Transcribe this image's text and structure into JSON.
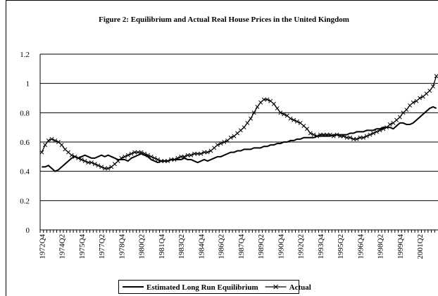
{
  "chart_data": {
    "type": "line",
    "title": "Figure 2: Equilibrium and Actual Real House Prices in the United Kingdom",
    "categories": [
      "1972Q4",
      null,
      null,
      null,
      null,
      null,
      "1974Q2",
      null,
      null,
      null,
      null,
      null,
      "1975Q4",
      null,
      null,
      null,
      null,
      null,
      "1977Q2",
      null,
      null,
      null,
      null,
      null,
      "1978Q4",
      null,
      null,
      null,
      null,
      null,
      "1980Q2",
      null,
      null,
      null,
      null,
      null,
      "1981Q4",
      null,
      null,
      null,
      null,
      null,
      "1983Q2",
      null,
      null,
      null,
      null,
      null,
      "1984Q4",
      null,
      null,
      null,
      null,
      null,
      "1986Q2",
      null,
      null,
      null,
      null,
      null,
      "1987Q4",
      null,
      null,
      null,
      null,
      null,
      "1989Q2",
      null,
      null,
      null,
      null,
      null,
      "1990Q4",
      null,
      null,
      null,
      null,
      null,
      "1992Q2",
      null,
      null,
      null,
      null,
      null,
      "1993Q4",
      null,
      null,
      null,
      null,
      null,
      "1995Q2",
      null,
      null,
      null,
      null,
      null,
      "1996Q4",
      null,
      null,
      null,
      null,
      null,
      "1998Q2",
      null,
      null,
      null,
      null,
      null,
      "1999Q4",
      null,
      null,
      null,
      null,
      null,
      "2001Q2",
      null,
      null,
      null,
      null,
      null
    ],
    "series": [
      {
        "name": "Estimated Long Run Equilibrium",
        "color": "#000000",
        "marker": "none",
        "values": [
          0.43,
          0.43,
          0.44,
          0.42,
          0.4,
          0.41,
          0.43,
          0.45,
          0.47,
          0.49,
          0.5,
          0.49,
          0.5,
          0.51,
          0.5,
          0.49,
          0.49,
          0.5,
          0.51,
          0.5,
          0.51,
          0.5,
          0.49,
          0.48,
          0.48,
          0.48,
          0.47,
          0.49,
          0.5,
          0.51,
          0.52,
          0.51,
          0.5,
          0.48,
          0.47,
          0.46,
          0.47,
          0.47,
          0.47,
          0.48,
          0.48,
          0.48,
          0.48,
          0.49,
          0.48,
          0.48,
          0.47,
          0.46,
          0.47,
          0.48,
          0.47,
          0.48,
          0.49,
          0.5,
          0.5,
          0.51,
          0.52,
          0.53,
          0.53,
          0.54,
          0.54,
          0.55,
          0.55,
          0.55,
          0.56,
          0.56,
          0.56,
          0.57,
          0.57,
          0.58,
          0.58,
          0.59,
          0.59,
          0.6,
          0.6,
          0.61,
          0.61,
          0.62,
          0.62,
          0.63,
          0.63,
          0.63,
          0.63,
          0.64,
          0.64,
          0.64,
          0.64,
          0.64,
          0.65,
          0.65,
          0.65,
          0.65,
          0.65,
          0.66,
          0.66,
          0.67,
          0.67,
          0.67,
          0.68,
          0.68,
          0.68,
          0.69,
          0.69,
          0.7,
          0.7,
          0.7,
          0.69,
          0.71,
          0.73,
          0.73,
          0.72,
          0.72,
          0.73,
          0.75,
          0.77,
          0.79,
          0.81,
          0.83,
          0.84,
          0.83
        ]
      },
      {
        "name": "Actual",
        "color": "#000000",
        "marker": "x",
        "values": [
          0.53,
          0.58,
          0.61,
          0.62,
          0.61,
          0.6,
          0.58,
          0.55,
          0.53,
          0.51,
          0.5,
          0.49,
          0.48,
          0.47,
          0.46,
          0.46,
          0.45,
          0.44,
          0.43,
          0.42,
          0.42,
          0.43,
          0.45,
          0.47,
          0.49,
          0.5,
          0.51,
          0.52,
          0.53,
          0.53,
          0.53,
          0.52,
          0.51,
          0.5,
          0.49,
          0.48,
          0.47,
          0.47,
          0.47,
          0.48,
          0.48,
          0.49,
          0.5,
          0.5,
          0.51,
          0.51,
          0.52,
          0.52,
          0.52,
          0.53,
          0.53,
          0.54,
          0.56,
          0.58,
          0.59,
          0.6,
          0.61,
          0.63,
          0.64,
          0.66,
          0.68,
          0.7,
          0.73,
          0.76,
          0.8,
          0.84,
          0.87,
          0.89,
          0.89,
          0.88,
          0.86,
          0.83,
          0.8,
          0.79,
          0.78,
          0.76,
          0.75,
          0.74,
          0.73,
          0.71,
          0.69,
          0.66,
          0.65,
          0.64,
          0.65,
          0.65,
          0.65,
          0.65,
          0.64,
          0.65,
          0.64,
          0.64,
          0.63,
          0.63,
          0.62,
          0.62,
          0.63,
          0.63,
          0.64,
          0.65,
          0.66,
          0.67,
          0.68,
          0.69,
          0.7,
          0.72,
          0.73,
          0.75,
          0.77,
          0.8,
          0.82,
          0.85,
          0.87,
          0.88,
          0.9,
          0.91,
          0.93,
          0.95,
          0.98,
          1.05
        ]
      }
    ],
    "ylim": [
      0,
      1.2
    ],
    "yticks": [
      0,
      0.2,
      0.4,
      0.6,
      0.8,
      1,
      1.2
    ],
    "grid": true,
    "legend": "bottom"
  }
}
